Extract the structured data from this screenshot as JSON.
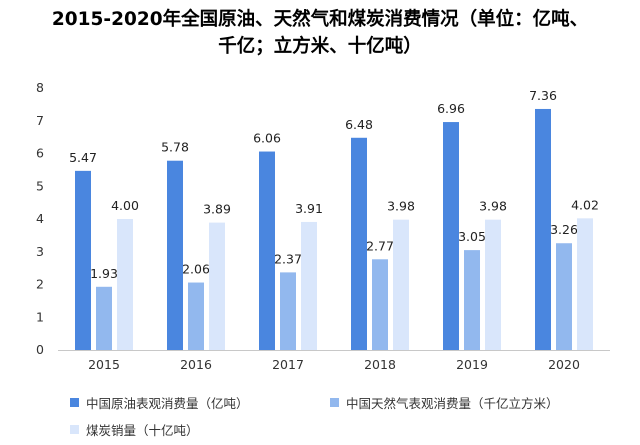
{
  "title": {
    "line1": "2015-2020年全国原油、天然气和煤炭消费情况（单位：亿吨、",
    "line2": "千亿；立方米、十亿吨）"
  },
  "colors": {
    "oil": "#4A86DF",
    "gas": "#92B8EE",
    "coal": "#D9E6FB",
    "axis": "#C8C8C8"
  },
  "legend": {
    "oil": "中国原油表观消费量（亿吨）",
    "gas": "中国天然气表观消费量（千亿立方米）",
    "coal": "煤炭销量（十亿吨）"
  },
  "chart_data": {
    "type": "bar",
    "categories": [
      "2015",
      "2016",
      "2017",
      "2018",
      "2019",
      "2020"
    ],
    "series": [
      {
        "name": "中国原油表观消费量（亿吨）",
        "values": [
          5.47,
          5.78,
          6.06,
          6.48,
          6.96,
          7.36
        ]
      },
      {
        "name": "中国天然气表观消费量（千亿立方米）",
        "values": [
          1.93,
          2.06,
          2.37,
          2.77,
          3.05,
          3.26
        ]
      },
      {
        "name": "煤炭销量（十亿吨）",
        "values": [
          4.0,
          3.89,
          3.91,
          3.98,
          3.98,
          4.02
        ]
      }
    ],
    "yticks": [
      0,
      1,
      2,
      3,
      4,
      5,
      6,
      7,
      8
    ],
    "ylim": [
      0,
      8
    ],
    "grid": false,
    "legend_position": "bottom"
  }
}
